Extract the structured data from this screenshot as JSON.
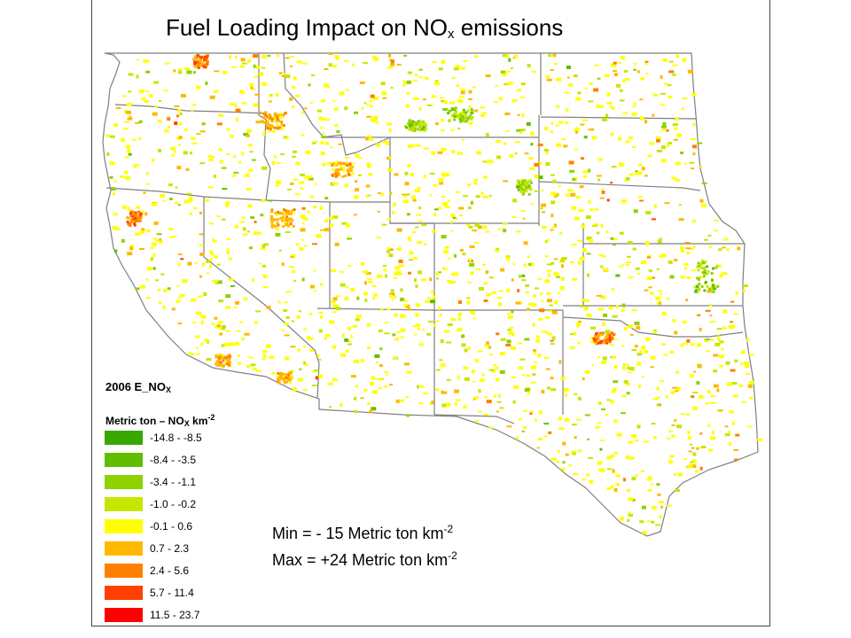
{
  "title": {
    "main": "Fuel Loading Impact on NO",
    "sub": "x",
    "rest": " emissions"
  },
  "legend": {
    "year_label": "2006 E_NO",
    "year_sub": "X",
    "units_a": "Metric ton – NO",
    "units_sub": "X",
    "units_b": " km",
    "units_sup": "-2",
    "classes": [
      {
        "label": "-14.8 - -8.5",
        "color": "#38a800"
      },
      {
        "label": "-8.4 - -3.5",
        "color": "#5fbe00"
      },
      {
        "label": "-3.4 - -1.1",
        "color": "#8ed200"
      },
      {
        "label": "-1.0 - -0.2",
        "color": "#c6e600"
      },
      {
        "label": "-0.1 - 0.6",
        "color": "#ffff00"
      },
      {
        "label": "0.7 - 2.3",
        "color": "#ffb800"
      },
      {
        "label": "2.4 - 5.6",
        "color": "#ff8000"
      },
      {
        "label": "5.7 - 11.4",
        "color": "#ff4000"
      },
      {
        "label": "11.5 - 23.7",
        "color": "#ff0000"
      }
    ]
  },
  "stats": {
    "min_text": "Min = - 15 Metric ton km",
    "min_sup": "-2",
    "max_text": "Max = +24 Metric ton km",
    "max_sup": "-2"
  },
  "map": {
    "region": "Western United States",
    "states": [
      "Washington",
      "Oregon",
      "California",
      "Idaho",
      "Nevada",
      "Montana",
      "Wyoming",
      "Utah",
      "Arizona",
      "Colorado",
      "New Mexico",
      "North Dakota",
      "South Dakota",
      "Nebraska",
      "Kansas",
      "Oklahoma",
      "Texas"
    ],
    "boundary_color": "#808080"
  }
}
